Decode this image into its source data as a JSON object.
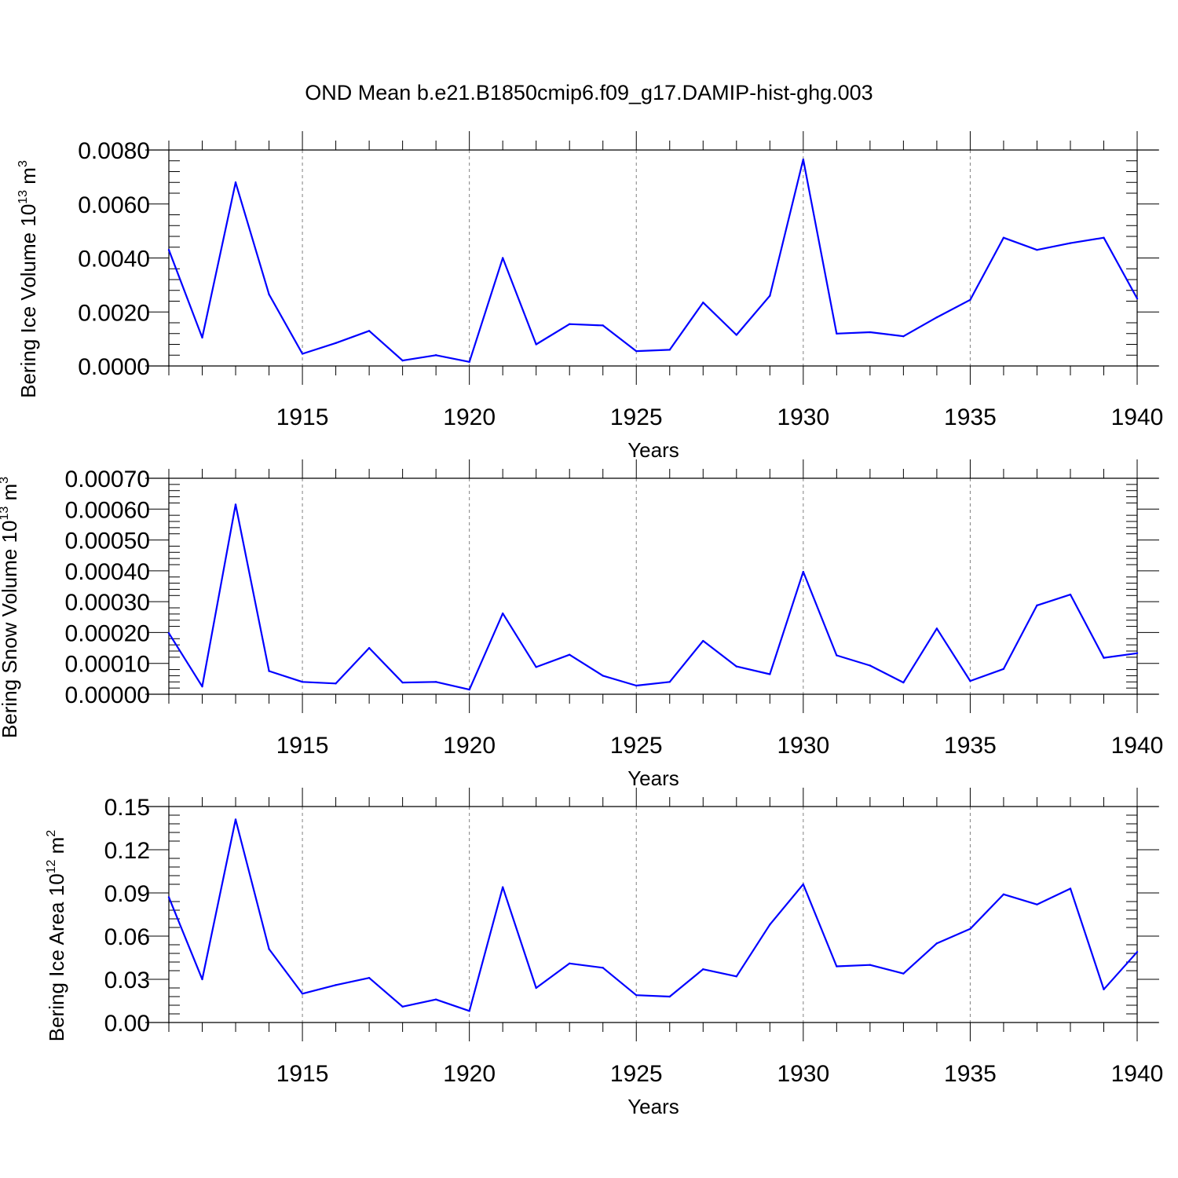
{
  "figure": {
    "title": "OND Mean b.e21.B1850cmip6.f09_g17.DAMIP-hist-ghg.003"
  },
  "colors": {
    "line": "#0000ff",
    "axis": "#000000",
    "grid": "#808080"
  },
  "chart_data": [
    {
      "type": "line",
      "xlabel": "Years",
      "ylabel": {
        "text": "Bering Ice Volume 10",
        "exp": "13",
        "unit": " m",
        "unit_exp": "3"
      },
      "xlim": [
        1911,
        1940
      ],
      "ylim": [
        0,
        0.008
      ],
      "xticks": [
        "1915",
        "1920",
        "1925",
        "1930",
        "1935",
        "1940"
      ],
      "yticks": [
        "0.0000",
        "0.0020",
        "0.0040",
        "0.0060",
        "0.0080"
      ],
      "series": [
        {
          "name": "Bering Ice Volume",
          "x": [
            1911,
            1912,
            1913,
            1914,
            1915,
            1916,
            1917,
            1918,
            1919,
            1920,
            1921,
            1922,
            1923,
            1924,
            1925,
            1926,
            1927,
            1928,
            1929,
            1930,
            1931,
            1932,
            1933,
            1934,
            1935,
            1936,
            1937,
            1938,
            1939,
            1940
          ],
          "values": [
            0.0043,
            0.00105,
            0.0068,
            0.00265,
            0.00045,
            0.00085,
            0.0013,
            0.0002,
            0.0004,
            0.00015,
            0.004,
            0.0008,
            0.00155,
            0.0015,
            0.00055,
            0.0006,
            0.00235,
            0.00115,
            0.0026,
            0.00765,
            0.0012,
            0.00125,
            0.0011,
            0.0018,
            0.00245,
            0.00475,
            0.0043,
            0.00455,
            0.00475,
            0.0025
          ]
        }
      ]
    },
    {
      "type": "line",
      "xlabel": "Years",
      "ylabel": {
        "text": "Bering Snow Volume 10",
        "exp": "13",
        "unit": " m",
        "unit_exp": "3"
      },
      "xlim": [
        1911,
        1940
      ],
      "ylim": [
        0,
        0.0007
      ],
      "xticks": [
        "1915",
        "1920",
        "1925",
        "1930",
        "1935",
        "1940"
      ],
      "yticks": [
        "0.00000",
        "0.00010",
        "0.00020",
        "0.00030",
        "0.00040",
        "0.00050",
        "0.00060",
        "0.00070"
      ],
      "series": [
        {
          "name": "Bering Snow Volume",
          "x": [
            1911,
            1912,
            1913,
            1914,
            1915,
            1916,
            1917,
            1918,
            1919,
            1920,
            1921,
            1922,
            1923,
            1924,
            1925,
            1926,
            1927,
            1928,
            1929,
            1930,
            1931,
            1932,
            1933,
            1934,
            1935,
            1936,
            1937,
            1938,
            1939,
            1940
          ],
          "values": [
            0.000198,
            2.5e-05,
            0.000615,
            7.5e-05,
            4e-05,
            3.5e-05,
            0.00015,
            3.8e-05,
            4e-05,
            1.5e-05,
            0.000262,
            8.8e-05,
            0.000128,
            6e-05,
            2.8e-05,
            4e-05,
            0.000173,
            9e-05,
            6.5e-05,
            0.000397,
            0.000126,
            9.3e-05,
            3.8e-05,
            0.000213,
            4.3e-05,
            8.2e-05,
            0.000288,
            0.000323,
            0.000118,
            0.000133
          ]
        }
      ]
    },
    {
      "type": "line",
      "xlabel": "Years",
      "ylabel": {
        "text": "Bering Ice Area 10",
        "exp": "12",
        "unit": " m",
        "unit_exp": "2"
      },
      "xlim": [
        1911,
        1940
      ],
      "ylim": [
        0,
        0.15
      ],
      "xticks": [
        "1915",
        "1920",
        "1925",
        "1930",
        "1935",
        "1940"
      ],
      "yticks": [
        "0.00",
        "0.03",
        "0.06",
        "0.09",
        "0.12",
        "0.15"
      ],
      "series": [
        {
          "name": "Bering Ice Area",
          "x": [
            1911,
            1912,
            1913,
            1914,
            1915,
            1916,
            1917,
            1918,
            1919,
            1920,
            1921,
            1922,
            1923,
            1924,
            1925,
            1926,
            1927,
            1928,
            1929,
            1930,
            1931,
            1932,
            1933,
            1934,
            1935,
            1936,
            1937,
            1938,
            1939,
            1940
          ],
          "values": [
            0.087,
            0.03,
            0.141,
            0.051,
            0.02,
            0.026,
            0.031,
            0.011,
            0.016,
            0.008,
            0.094,
            0.024,
            0.041,
            0.038,
            0.019,
            0.018,
            0.037,
            0.032,
            0.068,
            0.096,
            0.039,
            0.04,
            0.034,
            0.055,
            0.065,
            0.089,
            0.082,
            0.093,
            0.023,
            0.049
          ]
        }
      ]
    }
  ]
}
